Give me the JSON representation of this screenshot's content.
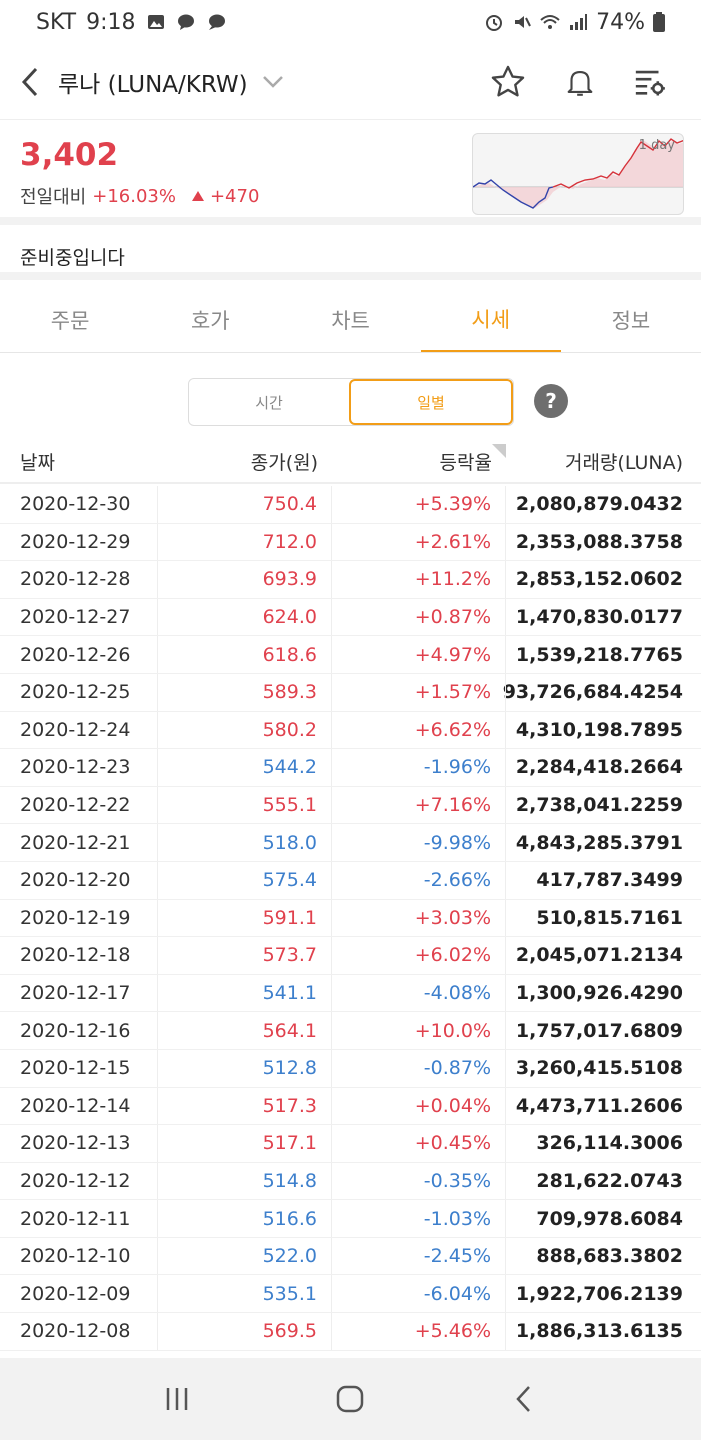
{
  "status": {
    "carrier": "SKT",
    "time": "9:18",
    "battery": "74%"
  },
  "header": {
    "title": "루나 (LUNA/KRW)"
  },
  "price": {
    "current": "3,402",
    "change_label": "전일대비",
    "change_pct": "+16.03%",
    "change_abs": "+470",
    "mini_chart_label": "1 day"
  },
  "notice": "준비중입니다",
  "tabs": [
    {
      "label": "주문"
    },
    {
      "label": "호가"
    },
    {
      "label": "차트"
    },
    {
      "label": "시세",
      "active": true
    },
    {
      "label": "정보"
    }
  ],
  "segment": {
    "time_label": "시간",
    "daily_label": "일별",
    "help": "?"
  },
  "table": {
    "headers": {
      "date": "날짜",
      "close": "종가(원)",
      "change": "등락율",
      "volume": "거래량(LUNA)"
    },
    "rows": [
      {
        "date": "2020-12-30",
        "close": "750.4",
        "change": "+5.39%",
        "volume": "2,080,879.0432",
        "dir": "up"
      },
      {
        "date": "2020-12-29",
        "close": "712.0",
        "change": "+2.61%",
        "volume": "2,353,088.3758",
        "dir": "up"
      },
      {
        "date": "2020-12-28",
        "close": "693.9",
        "change": "+11.2%",
        "volume": "2,853,152.0602",
        "dir": "up"
      },
      {
        "date": "2020-12-27",
        "close": "624.0",
        "change": "+0.87%",
        "volume": "1,470,830.0177",
        "dir": "up"
      },
      {
        "date": "2020-12-26",
        "close": "618.6",
        "change": "+4.97%",
        "volume": "1,539,218.7765",
        "dir": "up"
      },
      {
        "date": "2020-12-25",
        "close": "589.3",
        "change": "+1.57%",
        "volume": "93,726,684.4254",
        "dir": "up"
      },
      {
        "date": "2020-12-24",
        "close": "580.2",
        "change": "+6.62%",
        "volume": "4,310,198.7895",
        "dir": "up"
      },
      {
        "date": "2020-12-23",
        "close": "544.2",
        "change": "-1.96%",
        "volume": "2,284,418.2664",
        "dir": "down"
      },
      {
        "date": "2020-12-22",
        "close": "555.1",
        "change": "+7.16%",
        "volume": "2,738,041.2259",
        "dir": "up"
      },
      {
        "date": "2020-12-21",
        "close": "518.0",
        "change": "-9.98%",
        "volume": "4,843,285.3791",
        "dir": "down"
      },
      {
        "date": "2020-12-20",
        "close": "575.4",
        "change": "-2.66%",
        "volume": "417,787.3499",
        "dir": "down"
      },
      {
        "date": "2020-12-19",
        "close": "591.1",
        "change": "+3.03%",
        "volume": "510,815.7161",
        "dir": "up"
      },
      {
        "date": "2020-12-18",
        "close": "573.7",
        "change": "+6.02%",
        "volume": "2,045,071.2134",
        "dir": "up"
      },
      {
        "date": "2020-12-17",
        "close": "541.1",
        "change": "-4.08%",
        "volume": "1,300,926.4290",
        "dir": "down"
      },
      {
        "date": "2020-12-16",
        "close": "564.1",
        "change": "+10.0%",
        "volume": "1,757,017.6809",
        "dir": "up"
      },
      {
        "date": "2020-12-15",
        "close": "512.8",
        "change": "-0.87%",
        "volume": "3,260,415.5108",
        "dir": "down"
      },
      {
        "date": "2020-12-14",
        "close": "517.3",
        "change": "+0.04%",
        "volume": "4,473,711.2606",
        "dir": "up"
      },
      {
        "date": "2020-12-13",
        "close": "517.1",
        "change": "+0.45%",
        "volume": "326,114.3006",
        "dir": "up"
      },
      {
        "date": "2020-12-12",
        "close": "514.8",
        "change": "-0.35%",
        "volume": "281,622.0743",
        "dir": "down"
      },
      {
        "date": "2020-12-11",
        "close": "516.6",
        "change": "-1.03%",
        "volume": "709,978.6084",
        "dir": "down"
      },
      {
        "date": "2020-12-10",
        "close": "522.0",
        "change": "-2.45%",
        "volume": "888,683.3802",
        "dir": "down"
      },
      {
        "date": "2020-12-09",
        "close": "535.1",
        "change": "-6.04%",
        "volume": "1,922,706.2139",
        "dir": "down"
      },
      {
        "date": "2020-12-08",
        "close": "569.5",
        "change": "+5.46%",
        "volume": "1,886,313.6135",
        "dir": "up"
      }
    ]
  },
  "colors": {
    "up": "#e0414d",
    "down": "#3d7fcc",
    "accent": "#f29d17"
  }
}
